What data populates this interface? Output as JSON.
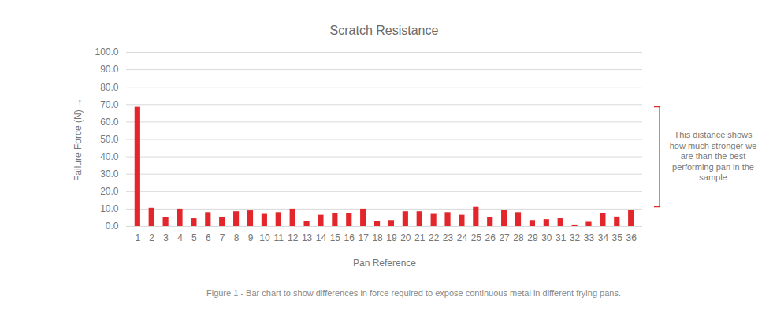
{
  "chart_data": {
    "type": "bar",
    "title": "Scratch Resistance",
    "x_label": "Pan Reference",
    "y_label": "Failure Force (N)",
    "annotation": "This distance shows how much stronger we are than the best performing pan in the sample",
    "caption": "Figure 1  - Bar chart to show differences in force required to expose continuous metal in different frying pans.",
    "categories": [
      "1",
      "2",
      "3",
      "4",
      "5",
      "6",
      "7",
      "8",
      "9",
      "10",
      "11",
      "12",
      "13",
      "14",
      "15",
      "16",
      "17",
      "18",
      "19",
      "20",
      "21",
      "22",
      "23",
      "24",
      "25",
      "26",
      "27",
      "28",
      "29",
      "30",
      "31",
      "32",
      "33",
      "34",
      "35",
      "36"
    ],
    "values": [
      68.5,
      10.5,
      5,
      10,
      4.5,
      8,
      5,
      8.5,
      9,
      7,
      8,
      10,
      3,
      6.5,
      7.5,
      7.5,
      10,
      3,
      3.5,
      8.5,
      8.5,
      7,
      8,
      6.5,
      11,
      5,
      9.5,
      8,
      3.5,
      4,
      4.5,
      0.5,
      2.5,
      7.5,
      5.5,
      9.5
    ],
    "color": "#e3262b",
    "ylim": [
      0,
      100
    ],
    "yticks": [
      {
        "value": 0,
        "label": "0.0"
      },
      {
        "value": 10,
        "label": "10.0"
      },
      {
        "value": 20,
        "label": "20.0"
      },
      {
        "value": 30,
        "label": "30.0"
      },
      {
        "value": 40,
        "label": "40.0"
      },
      {
        "value": 50,
        "label": "50.0"
      },
      {
        "value": 60,
        "label": "60.0"
      },
      {
        "value": 70,
        "label": "70.0"
      },
      {
        "value": 80,
        "label": "80.0"
      },
      {
        "value": 90,
        "label": "90.0"
      },
      {
        "value": 100,
        "label": "100.0"
      }
    ],
    "grid": true
  }
}
